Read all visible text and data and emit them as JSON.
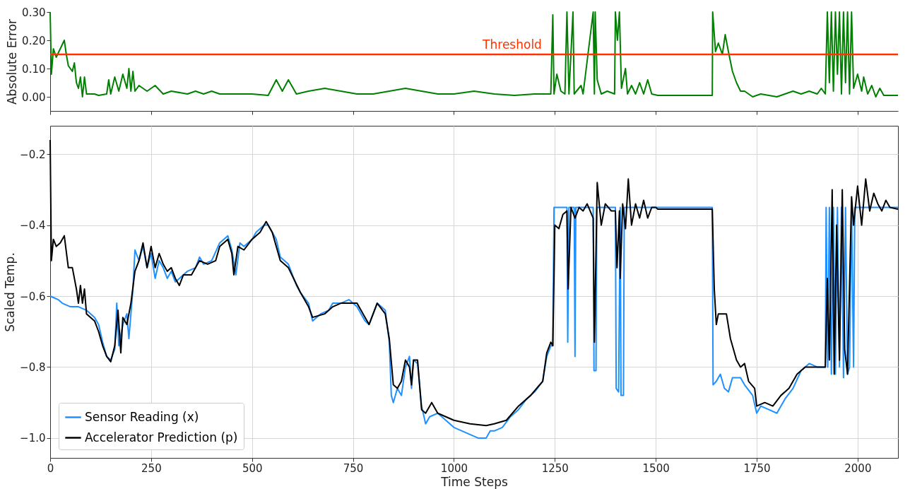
{
  "chart_data": [
    {
      "type": "line",
      "ylabel": "Absolute Error",
      "xlim": [
        0,
        2100
      ],
      "xticks": [
        0,
        250,
        500,
        750,
        1000,
        1250,
        1500,
        1750,
        2000
      ],
      "ylim": [
        -0.05,
        0.3
      ],
      "yticks": [
        {
          "value": 0,
          "label": "0.00"
        },
        {
          "value": 0.1,
          "label": "0.10"
        },
        {
          "value": 0.2,
          "label": "0.20"
        },
        {
          "value": 0.3,
          "label": "0.30"
        }
      ],
      "tick_labels": "y",
      "grid": false,
      "legend": false,
      "ref_lines": [
        {
          "axis": "y",
          "value": 0.15,
          "label": "Threshold",
          "color": "#ff3300"
        }
      ],
      "series": [
        {
          "color": "#008000",
          "x": [
            0,
            3,
            8,
            15,
            25,
            35,
            40,
            45,
            55,
            60,
            65,
            70,
            75,
            80,
            85,
            90,
            110,
            120,
            140,
            145,
            150,
            160,
            170,
            180,
            190,
            195,
            200,
            205,
            210,
            220,
            240,
            260,
            280,
            300,
            340,
            360,
            380,
            400,
            420,
            460,
            500,
            540,
            560,
            575,
            590,
            610,
            640,
            680,
            720,
            760,
            800,
            840,
            880,
            920,
            960,
            1000,
            1050,
            1100,
            1150,
            1200,
            1240,
            1245,
            1248,
            1255,
            1265,
            1275,
            1280,
            1285,
            1295,
            1298,
            1315,
            1320,
            1345,
            1348,
            1350,
            1355,
            1365,
            1380,
            1398,
            1400,
            1405,
            1410,
            1415,
            1425,
            1430,
            1440,
            1450,
            1460,
            1470,
            1480,
            1490,
            1505,
            1640,
            1641,
            1648,
            1655,
            1665,
            1672,
            1680,
            1690,
            1700,
            1710,
            1720,
            1740,
            1760,
            1800,
            1820,
            1840,
            1860,
            1880,
            1900,
            1910,
            1920,
            1925,
            1930,
            1935,
            1940,
            1945,
            1950,
            1955,
            1960,
            1965,
            1970,
            1975,
            1980,
            1985,
            1990,
            2000,
            2010,
            2015,
            2025,
            2035,
            2045,
            2055,
            2065,
            2100
          ],
          "values": [
            0.3,
            0.08,
            0.17,
            0.14,
            0.17,
            0.2,
            0.15,
            0.11,
            0.09,
            0.12,
            0.05,
            0.03,
            0.07,
            0.0,
            0.07,
            0.01,
            0.01,
            0.005,
            0.01,
            0.06,
            0.01,
            0.07,
            0.02,
            0.08,
            0.03,
            0.1,
            0.02,
            0.09,
            0.02,
            0.04,
            0.02,
            0.04,
            0.01,
            0.02,
            0.01,
            0.02,
            0.01,
            0.02,
            0.01,
            0.01,
            0.01,
            0.005,
            0.06,
            0.02,
            0.06,
            0.01,
            0.02,
            0.03,
            0.02,
            0.01,
            0.01,
            0.02,
            0.03,
            0.02,
            0.01,
            0.01,
            0.02,
            0.01,
            0.005,
            0.01,
            0.01,
            0.29,
            0.01,
            0.08,
            0.02,
            0.01,
            0.3,
            0.01,
            0.3,
            0.01,
            0.04,
            0.01,
            0.3,
            0.01,
            0.3,
            0.06,
            0.01,
            0.02,
            0.01,
            0.3,
            0.2,
            0.3,
            0.03,
            0.1,
            0.01,
            0.04,
            0.01,
            0.05,
            0.01,
            0.06,
            0.01,
            0.005,
            0.005,
            0.3,
            0.16,
            0.19,
            0.15,
            0.22,
            0.16,
            0.09,
            0.05,
            0.02,
            0.02,
            0.0,
            0.01,
            0.0,
            0.01,
            0.02,
            0.01,
            0.02,
            0.01,
            0.03,
            0.01,
            0.3,
            0.05,
            0.3,
            0.02,
            0.3,
            0.08,
            0.3,
            0.01,
            0.3,
            0.05,
            0.3,
            0.01,
            0.3,
            0.03,
            0.08,
            0.02,
            0.07,
            0.01,
            0.04,
            0.0,
            0.03,
            0.005,
            0.005
          ]
        }
      ]
    },
    {
      "type": "line",
      "xlabel": "Time Steps",
      "ylabel": "Scaled Temp.",
      "xlim": [
        0,
        2100
      ],
      "xticks": [
        0,
        250,
        500,
        750,
        1000,
        1250,
        1500,
        1750,
        2000
      ],
      "ylim": [
        -1.056,
        -0.12
      ],
      "yticks": [
        {
          "value": -1.0,
          "label": "−1.0"
        },
        {
          "value": -0.8,
          "label": "−0.8"
        },
        {
          "value": -0.6,
          "label": "−0.6"
        },
        {
          "value": -0.4,
          "label": "−0.4"
        },
        {
          "value": -0.2,
          "label": "−0.2"
        }
      ],
      "grid": true,
      "legend": "bottom left",
      "series": [
        {
          "name": "Sensor Reading (x)",
          "color": "#1e90ff",
          "x": [
            0,
            10,
            20,
            30,
            50,
            70,
            90,
            110,
            120,
            130,
            140,
            150,
            160,
            165,
            170,
            180,
            190,
            195,
            205,
            210,
            220,
            230,
            240,
            250,
            260,
            270,
            280,
            290,
            300,
            310,
            320,
            340,
            360,
            370,
            380,
            400,
            420,
            440,
            450,
            460,
            470,
            480,
            500,
            510,
            530,
            540,
            560,
            570,
            590,
            610,
            620,
            640,
            650,
            670,
            690,
            700,
            720,
            740,
            760,
            780,
            790,
            800,
            810,
            830,
            840,
            845,
            850,
            860,
            870,
            880,
            890,
            895,
            900,
            910,
            920,
            930,
            940,
            960,
            980,
            1000,
            1020,
            1040,
            1060,
            1080,
            1090,
            1100,
            1120,
            1140,
            1160,
            1180,
            1200,
            1220,
            1230,
            1240,
            1245,
            1248,
            1280,
            1282,
            1285,
            1298,
            1300,
            1302,
            1345,
            1347,
            1352,
            1354,
            1400,
            1402,
            1408,
            1412,
            1414,
            1420,
            1422,
            1640,
            1642,
            1650,
            1660,
            1670,
            1680,
            1690,
            1710,
            1720,
            1740,
            1750,
            1760,
            1780,
            1800,
            1820,
            1840,
            1860,
            1880,
            1900,
            1920,
            1922,
            1926,
            1930,
            1935,
            1940,
            1945,
            1950,
            1955,
            1960,
            1965,
            1970,
            1975,
            1980,
            1985,
            1990,
            1993,
            2100
          ],
          "values": [
            -0.6,
            -0.605,
            -0.61,
            -0.62,
            -0.63,
            -0.63,
            -0.64,
            -0.66,
            -0.68,
            -0.73,
            -0.77,
            -0.78,
            -0.75,
            -0.62,
            -0.74,
            -0.68,
            -0.65,
            -0.72,
            -0.58,
            -0.47,
            -0.5,
            -0.46,
            -0.52,
            -0.48,
            -0.55,
            -0.5,
            -0.52,
            -0.55,
            -0.53,
            -0.56,
            -0.55,
            -0.53,
            -0.52,
            -0.49,
            -0.51,
            -0.5,
            -0.45,
            -0.43,
            -0.47,
            -0.54,
            -0.45,
            -0.46,
            -0.44,
            -0.42,
            -0.4,
            -0.4,
            -0.44,
            -0.49,
            -0.51,
            -0.57,
            -0.59,
            -0.62,
            -0.67,
            -0.65,
            -0.64,
            -0.62,
            -0.62,
            -0.61,
            -0.63,
            -0.67,
            -0.68,
            -0.65,
            -0.62,
            -0.64,
            -0.73,
            -0.88,
            -0.9,
            -0.86,
            -0.88,
            -0.8,
            -0.77,
            -0.86,
            -0.78,
            -0.79,
            -0.91,
            -0.96,
            -0.94,
            -0.93,
            -0.95,
            -0.97,
            -0.98,
            -0.99,
            -1.0,
            -1.0,
            -0.98,
            -0.98,
            -0.97,
            -0.94,
            -0.92,
            -0.89,
            -0.87,
            -0.84,
            -0.77,
            -0.74,
            -0.74,
            -0.35,
            -0.35,
            -0.73,
            -0.35,
            -0.35,
            -0.77,
            -0.35,
            -0.35,
            -0.81,
            -0.81,
            -0.35,
            -0.35,
            -0.86,
            -0.87,
            -0.35,
            -0.88,
            -0.88,
            -0.35,
            -0.35,
            -0.85,
            -0.84,
            -0.82,
            -0.86,
            -0.87,
            -0.83,
            -0.83,
            -0.85,
            -0.88,
            -0.93,
            -0.91,
            -0.92,
            -0.93,
            -0.89,
            -0.86,
            -0.81,
            -0.79,
            -0.8,
            -0.8,
            -0.35,
            -0.8,
            -0.35,
            -0.82,
            -0.35,
            -0.82,
            -0.35,
            -0.8,
            -0.35,
            -0.83,
            -0.35,
            -0.82,
            -0.8,
            -0.35,
            -0.8,
            -0.35,
            -0.35
          ]
        },
        {
          "name": "Accelerator Prediction (p)",
          "color": "#000000",
          "x": [
            0,
            3,
            8,
            15,
            25,
            35,
            45,
            55,
            65,
            70,
            75,
            80,
            85,
            90,
            110,
            120,
            130,
            140,
            150,
            160,
            168,
            175,
            180,
            190,
            200,
            210,
            220,
            230,
            240,
            250,
            260,
            270,
            280,
            290,
            300,
            310,
            320,
            330,
            350,
            370,
            390,
            410,
            420,
            440,
            450,
            455,
            465,
            480,
            500,
            520,
            535,
            550,
            570,
            590,
            620,
            640,
            650,
            680,
            700,
            720,
            740,
            760,
            780,
            790,
            810,
            830,
            840,
            850,
            860,
            870,
            880,
            890,
            895,
            900,
            910,
            920,
            930,
            945,
            960,
            1000,
            1040,
            1080,
            1100,
            1130,
            1160,
            1190,
            1220,
            1230,
            1240,
            1245,
            1250,
            1260,
            1270,
            1280,
            1283,
            1290,
            1300,
            1310,
            1320,
            1330,
            1345,
            1348,
            1355,
            1365,
            1375,
            1390,
            1400,
            1404,
            1410,
            1412,
            1418,
            1425,
            1432,
            1440,
            1450,
            1460,
            1470,
            1480,
            1490,
            1500,
            1505,
            1640,
            1645,
            1650,
            1655,
            1665,
            1675,
            1685,
            1700,
            1710,
            1720,
            1730,
            1745,
            1750,
            1770,
            1790,
            1810,
            1830,
            1850,
            1870,
            1890,
            1910,
            1920,
            1925,
            1930,
            1937,
            1942,
            1948,
            1955,
            1962,
            1968,
            1975,
            1985,
            1990,
            2000,
            2010,
            2020,
            2030,
            2040,
            2050,
            2060,
            2070,
            2080,
            2100
          ],
          "values": [
            -0.16,
            -0.5,
            -0.44,
            -0.46,
            -0.45,
            -0.43,
            -0.52,
            -0.52,
            -0.58,
            -0.62,
            -0.57,
            -0.62,
            -0.58,
            -0.65,
            -0.67,
            -0.7,
            -0.74,
            -0.77,
            -0.785,
            -0.74,
            -0.64,
            -0.76,
            -0.66,
            -0.68,
            -0.62,
            -0.53,
            -0.5,
            -0.45,
            -0.52,
            -0.46,
            -0.52,
            -0.48,
            -0.51,
            -0.53,
            -0.52,
            -0.55,
            -0.57,
            -0.54,
            -0.54,
            -0.5,
            -0.51,
            -0.5,
            -0.46,
            -0.44,
            -0.48,
            -0.54,
            -0.46,
            -0.47,
            -0.44,
            -0.42,
            -0.39,
            -0.42,
            -0.5,
            -0.52,
            -0.59,
            -0.63,
            -0.66,
            -0.65,
            -0.63,
            -0.62,
            -0.62,
            -0.62,
            -0.66,
            -0.68,
            -0.62,
            -0.65,
            -0.72,
            -0.85,
            -0.86,
            -0.84,
            -0.78,
            -0.8,
            -0.85,
            -0.78,
            -0.78,
            -0.92,
            -0.93,
            -0.9,
            -0.93,
            -0.95,
            -0.96,
            -0.965,
            -0.96,
            -0.95,
            -0.91,
            -0.88,
            -0.84,
            -0.76,
            -0.73,
            -0.74,
            -0.4,
            -0.41,
            -0.37,
            -0.36,
            -0.58,
            -0.35,
            -0.38,
            -0.35,
            -0.36,
            -0.34,
            -0.38,
            -0.73,
            -0.28,
            -0.4,
            -0.34,
            -0.36,
            -0.36,
            -0.52,
            -0.36,
            -0.55,
            -0.34,
            -0.41,
            -0.27,
            -0.4,
            -0.34,
            -0.38,
            -0.33,
            -0.38,
            -0.35,
            -0.35,
            -0.355,
            -0.355,
            -0.58,
            -0.68,
            -0.65,
            -0.65,
            -0.65,
            -0.72,
            -0.78,
            -0.8,
            -0.79,
            -0.84,
            -0.86,
            -0.91,
            -0.9,
            -0.91,
            -0.88,
            -0.86,
            -0.82,
            -0.8,
            -0.8,
            -0.8,
            -0.8,
            -0.55,
            -0.78,
            -0.3,
            -0.82,
            -0.4,
            -0.78,
            -0.3,
            -0.75,
            -0.82,
            -0.32,
            -0.4,
            -0.29,
            -0.4,
            -0.27,
            -0.36,
            -0.31,
            -0.34,
            -0.36,
            -0.33,
            -0.35,
            -0.355
          ]
        }
      ]
    }
  ]
}
